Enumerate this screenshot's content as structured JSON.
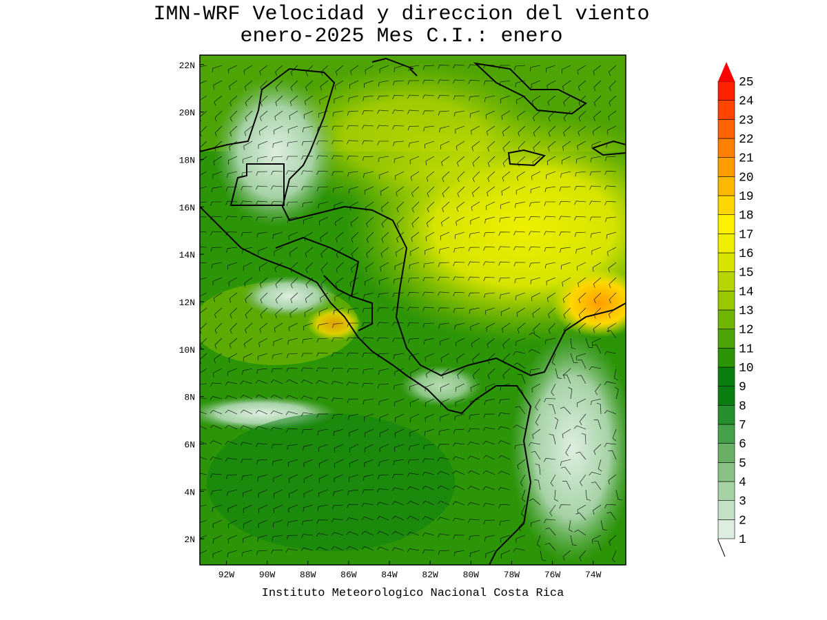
{
  "title": {
    "line1": "IMN-WRF Velocidad y direccion del viento",
    "line2": "enero-2025 Mes C.I.: enero"
  },
  "credit": "Instituto Meteorologico Nacional Costa Rica",
  "axes": {
    "lat_ticks": [
      "22N",
      "20N",
      "18N",
      "16N",
      "14N",
      "12N",
      "10N",
      "8N",
      "6N",
      "4N",
      "2N"
    ],
    "lat_values": [
      22,
      20,
      18,
      16,
      14,
      12,
      10,
      8,
      6,
      4,
      2
    ],
    "lon_ticks": [
      "92W",
      "90W",
      "88W",
      "86W",
      "84W",
      "82W",
      "80W",
      "78W",
      "76W",
      "74W"
    ],
    "lon_values": [
      -92,
      -90,
      -88,
      -86,
      -84,
      -82,
      -80,
      -78,
      -76,
      -74
    ],
    "lon_range": [
      -93.3,
      -72.4
    ],
    "lat_range": [
      0.9,
      22.4
    ]
  },
  "colorbar": {
    "labels": [
      "1",
      "2",
      "3",
      "4",
      "5",
      "6",
      "7",
      "8",
      "9",
      "10",
      "11",
      "12",
      "13",
      "14",
      "15",
      "16",
      "17",
      "18",
      "19",
      "20",
      "21",
      "22",
      "23",
      "24",
      "25"
    ],
    "colors": [
      "#ddeee0",
      "#c3e2c5",
      "#a6d2a6",
      "#88c286",
      "#6aaf66",
      "#47a04a",
      "#27902e",
      "#0b7e12",
      "#0a7f10",
      "#2b9407",
      "#4ea404",
      "#72b500",
      "#99c700",
      "#b8d400",
      "#d6e400",
      "#eeef00",
      "#fff000",
      "#ffd700",
      "#ffb800",
      "#ff9c00",
      "#ff7f00",
      "#ff6300",
      "#ff4500",
      "#ff2100"
    ],
    "arrow_color": "#ff0000"
  }
}
